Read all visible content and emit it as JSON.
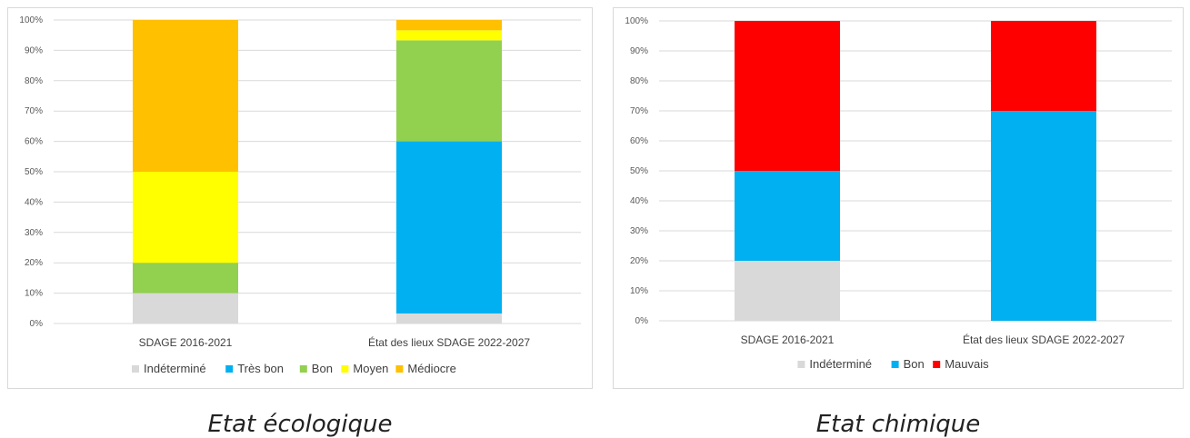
{
  "chart_data": [
    {
      "type": "bar",
      "stacked": true,
      "percent": true,
      "categories": [
        "SDAGE 2016-2021",
        "État des lieux SDAGE 2022-2027"
      ],
      "series": [
        {
          "name": "Indéterminé",
          "color": "#d9d9d9",
          "values": [
            10,
            3.3
          ]
        },
        {
          "name": "Très bon",
          "color": "#00b0f0",
          "values": [
            0,
            56.7
          ]
        },
        {
          "name": "Bon",
          "color": "#92d050",
          "values": [
            10,
            33.3
          ]
        },
        {
          "name": "Moyen",
          "color": "#ffff00",
          "values": [
            30,
            3.3
          ]
        },
        {
          "name": "Médiocre",
          "color": "#ffc000",
          "values": [
            50,
            3.4
          ]
        }
      ],
      "ylim": [
        0,
        100
      ],
      "yticks": [
        "0%",
        "10%",
        "20%",
        "30%",
        "40%",
        "50%",
        "60%",
        "70%",
        "80%",
        "90%",
        "100%"
      ],
      "grid": true,
      "legend": "bottom"
    },
    {
      "type": "bar",
      "stacked": true,
      "percent": true,
      "categories": [
        "SDAGE 2016-2021",
        "État des lieux SDAGE 2022-2027"
      ],
      "series": [
        {
          "name": "Indéterminé",
          "color": "#d9d9d9",
          "values": [
            20,
            0
          ]
        },
        {
          "name": "Bon",
          "color": "#00b0f0",
          "values": [
            30,
            70
          ]
        },
        {
          "name": "Mauvais",
          "color": "#ff0000",
          "values": [
            50,
            30
          ]
        }
      ],
      "ylim": [
        0,
        100
      ],
      "yticks": [
        "0%",
        "10%",
        "20%",
        "30%",
        "40%",
        "50%",
        "60%",
        "70%",
        "80%",
        "90%",
        "100%"
      ],
      "grid": true,
      "legend": "bottom"
    }
  ],
  "captions": [
    "Etat écologique",
    "Etat chimique"
  ]
}
